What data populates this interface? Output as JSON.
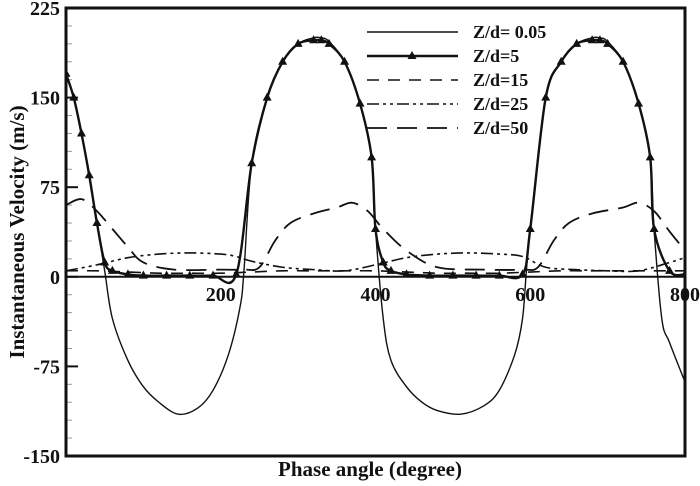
{
  "chart_data": {
    "type": "line",
    "title": "",
    "xlabel": "Phase angle (degree)",
    "ylabel": "Instantaneous Velocity (m/s)",
    "xlim": [
      0,
      800
    ],
    "ylim": [
      -150,
      225
    ],
    "xticks": [
      200,
      400,
      600,
      800
    ],
    "yticks": [
      -150,
      -75,
      0,
      75,
      150,
      225
    ],
    "grid": false,
    "legend_position": "upper-center-right",
    "series": [
      {
        "name": "Z/d= 0.05",
        "style": "solid",
        "x": [
          0,
          10,
          20,
          30,
          40,
          50,
          60,
          80,
          100,
          120,
          145,
          170,
          190,
          210,
          225,
          230,
          240,
          260,
          280,
          300,
          320,
          330,
          340,
          360,
          380,
          395,
          400,
          410,
          420,
          440,
          460,
          480,
          510,
          540,
          560,
          580,
          590,
          595,
          600,
          620,
          640,
          660,
          680,
          690,
          700,
          720,
          740,
          755,
          760,
          770,
          780,
          800
        ],
        "y": [
          170,
          150,
          120,
          85,
          45,
          5,
          -35,
          -70,
          -92,
          -105,
          -115,
          -110,
          -95,
          -65,
          -25,
          5,
          95,
          150,
          180,
          195,
          200,
          200,
          197,
          180,
          145,
          100,
          40,
          -35,
          -70,
          -92,
          -105,
          -112,
          -115,
          -108,
          -95,
          -65,
          -35,
          5,
          40,
          150,
          180,
          195,
          200,
          200,
          197,
          180,
          145,
          100,
          40,
          -35,
          -55,
          -88
        ]
      },
      {
        "name": "Z/d=5",
        "style": "solid-triangle-markers",
        "x": [
          0,
          10,
          20,
          30,
          40,
          50,
          60,
          80,
          100,
          130,
          160,
          190,
          220,
          240,
          260,
          280,
          300,
          320,
          330,
          340,
          360,
          380,
          395,
          400,
          410,
          420,
          440,
          470,
          500,
          530,
          560,
          590,
          600,
          620,
          640,
          660,
          680,
          690,
          700,
          720,
          740,
          755,
          760,
          780,
          800
        ],
        "y": [
          170,
          150,
          120,
          85,
          45,
          12,
          5,
          2,
          1,
          1,
          1,
          1,
          2,
          95,
          150,
          180,
          195,
          198,
          198,
          195,
          180,
          145,
          100,
          40,
          12,
          5,
          2,
          1,
          1,
          1,
          1,
          2,
          40,
          150,
          180,
          195,
          198,
          198,
          195,
          180,
          145,
          100,
          40,
          5,
          2
        ]
      },
      {
        "name": "Z/d=15",
        "style": "dashed",
        "x": [
          0,
          40,
          80,
          120,
          160,
          200,
          240,
          280,
          320,
          360,
          400,
          440,
          480,
          520,
          560,
          600,
          640,
          680,
          720,
          760,
          800
        ],
        "y": [
          5,
          5,
          4,
          3,
          3,
          3,
          4,
          5,
          5,
          5,
          5,
          4,
          3,
          3,
          3,
          4,
          5,
          5,
          5,
          5,
          5
        ]
      },
      {
        "name": "Z/d=25",
        "style": "dash-dot-dot",
        "x": [
          0,
          40,
          80,
          120,
          160,
          200,
          220,
          240,
          280,
          320,
          360,
          400,
          440,
          480,
          520,
          560,
          590,
          620,
          660,
          700,
          740,
          780,
          800
        ],
        "y": [
          5,
          10,
          16,
          19,
          20,
          19,
          17,
          13,
          8,
          6,
          5,
          10,
          16,
          19,
          20,
          19,
          17,
          8,
          6,
          5,
          5,
          12,
          16
        ]
      },
      {
        "name": "Z/d=50",
        "style": "long-dash",
        "x": [
          0,
          20,
          40,
          60,
          80,
          100,
          140,
          200,
          230,
          250,
          270,
          290,
          320,
          350,
          370,
          390,
          410,
          440,
          480,
          540,
          590,
          610,
          630,
          650,
          680,
          720,
          740,
          760,
          780,
          800
        ],
        "y": [
          60,
          65,
          55,
          40,
          25,
          12,
          6,
          6,
          6,
          8,
          30,
          45,
          53,
          58,
          62,
          55,
          40,
          22,
          8,
          6,
          6,
          8,
          30,
          45,
          53,
          58,
          62,
          55,
          38,
          22
        ]
      }
    ],
    "legend": [
      "Z/d= 0.05",
      "Z/d=5",
      "Z/d=15",
      "Z/d=25",
      "Z/d=50"
    ]
  },
  "axes": {
    "x_title": "Phase angle (degree)",
    "y_title": "Instantaneous Velocity (m/s)",
    "x_tick_labels": [
      "200",
      "400",
      "600",
      "800"
    ],
    "y_tick_labels": [
      "225",
      "150",
      "75",
      "0",
      "-75",
      "-150"
    ]
  },
  "legend": {
    "items": [
      {
        "label": "Z/d= 0.05"
      },
      {
        "label": "Z/d=5"
      },
      {
        "label": "Z/d=15"
      },
      {
        "label": "Z/d=25"
      },
      {
        "label": "Z/d=50"
      }
    ]
  }
}
